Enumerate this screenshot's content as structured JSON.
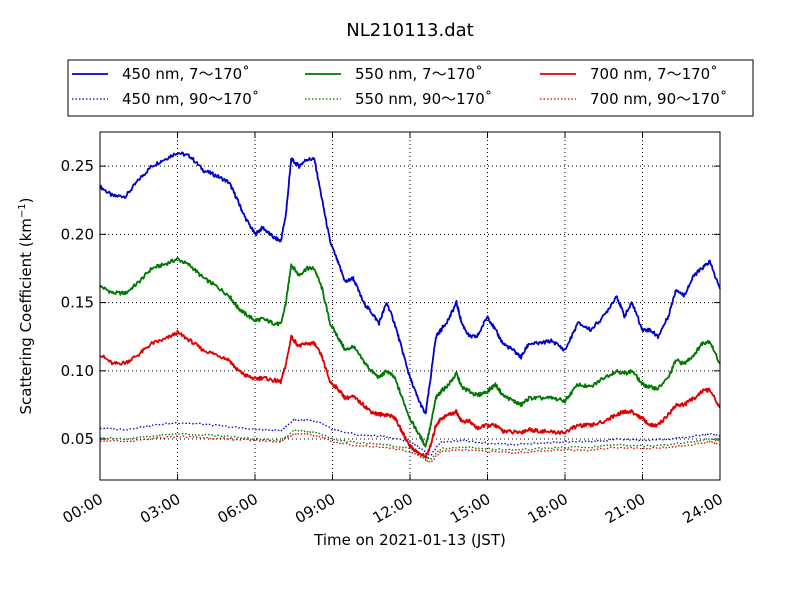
{
  "chart_data": {
    "type": "line",
    "title": "NL210113.dat",
    "xlabel": "Time on 2021-01-13 (JST)",
    "ylabel_main": "Scattering Coefficient (km",
    "ylabel_sup": "−1",
    "ylabel_end": ")",
    "xlim": [
      0,
      24
    ],
    "ylim": [
      0.02,
      0.275
    ],
    "x_ticks": [
      0,
      3,
      6,
      9,
      12,
      15,
      18,
      21,
      24
    ],
    "x_tick_labels": [
      "00:00",
      "03:00",
      "06:00",
      "09:00",
      "12:00",
      "15:00",
      "18:00",
      "21:00",
      "24:00"
    ],
    "y_ticks": [
      0.05,
      0.1,
      0.15,
      0.2,
      0.25
    ],
    "y_tick_labels": [
      "0.05",
      "0.10",
      "0.15",
      "0.20",
      "0.25"
    ],
    "grid": true,
    "legend_position": "top",
    "series": [
      {
        "name": "450 nm, 7～170˚",
        "color": "#0000cc",
        "style": "solid",
        "x": [
          0,
          0.5,
          1,
          1.5,
          2,
          2.5,
          3,
          3.5,
          4,
          4.5,
          5,
          5.3,
          5.6,
          6,
          6.3,
          6.7,
          7,
          7.2,
          7.4,
          7.7,
          8,
          8.3,
          8.6,
          8.9,
          9.2,
          9.5,
          9.8,
          10.2,
          10.5,
          10.8,
          11.1,
          11.4,
          11.7,
          12,
          12.3,
          12.6,
          12.8,
          13,
          13.2,
          13.5,
          13.8,
          14,
          14.3,
          14.6,
          15,
          15.3,
          15.6,
          16,
          16.3,
          16.6,
          17,
          17.5,
          18,
          18.5,
          19,
          19.5,
          20,
          20.3,
          20.6,
          21,
          21.3,
          21.6,
          22,
          22.3,
          22.6,
          23,
          23.3,
          23.6,
          24
        ],
        "y": [
          0.235,
          0.228,
          0.228,
          0.24,
          0.25,
          0.255,
          0.26,
          0.257,
          0.247,
          0.243,
          0.238,
          0.226,
          0.213,
          0.2,
          0.205,
          0.198,
          0.195,
          0.215,
          0.255,
          0.25,
          0.255,
          0.255,
          0.225,
          0.195,
          0.18,
          0.165,
          0.168,
          0.15,
          0.143,
          0.135,
          0.15,
          0.135,
          0.115,
          0.095,
          0.08,
          0.068,
          0.095,
          0.125,
          0.13,
          0.138,
          0.15,
          0.135,
          0.125,
          0.125,
          0.14,
          0.13,
          0.12,
          0.115,
          0.11,
          0.12,
          0.12,
          0.122,
          0.115,
          0.135,
          0.13,
          0.14,
          0.155,
          0.14,
          0.15,
          0.13,
          0.13,
          0.125,
          0.14,
          0.16,
          0.155,
          0.17,
          0.175,
          0.18,
          0.16
        ]
      },
      {
        "name": "550 nm, 7～170˚",
        "color": "#007700",
        "style": "solid",
        "x": [
          0,
          0.5,
          1,
          1.5,
          2,
          2.5,
          3,
          3.5,
          4,
          4.5,
          5,
          5.3,
          5.6,
          6,
          6.3,
          6.7,
          7,
          7.2,
          7.4,
          7.7,
          8,
          8.3,
          8.6,
          8.9,
          9.2,
          9.5,
          9.8,
          10.2,
          10.5,
          10.8,
          11.1,
          11.4,
          11.7,
          12,
          12.3,
          12.6,
          12.8,
          13,
          13.2,
          13.5,
          13.8,
          14,
          14.3,
          14.6,
          15,
          15.3,
          15.6,
          16,
          16.3,
          16.6,
          17,
          17.5,
          18,
          18.5,
          19,
          19.5,
          20,
          20.3,
          20.6,
          21,
          21.3,
          21.6,
          22,
          22.3,
          22.6,
          23,
          23.3,
          23.6,
          24
        ],
        "y": [
          0.162,
          0.157,
          0.157,
          0.165,
          0.175,
          0.178,
          0.182,
          0.177,
          0.168,
          0.162,
          0.155,
          0.147,
          0.142,
          0.137,
          0.138,
          0.135,
          0.134,
          0.15,
          0.178,
          0.17,
          0.175,
          0.175,
          0.16,
          0.135,
          0.125,
          0.115,
          0.118,
          0.107,
          0.1,
          0.095,
          0.1,
          0.095,
          0.08,
          0.065,
          0.055,
          0.045,
          0.06,
          0.08,
          0.085,
          0.09,
          0.098,
          0.088,
          0.085,
          0.082,
          0.085,
          0.09,
          0.082,
          0.078,
          0.075,
          0.08,
          0.08,
          0.08,
          0.078,
          0.09,
          0.088,
          0.095,
          0.1,
          0.098,
          0.1,
          0.09,
          0.088,
          0.087,
          0.095,
          0.108,
          0.105,
          0.112,
          0.12,
          0.122,
          0.105
        ]
      },
      {
        "name": "700 nm, 7～170˚",
        "color": "#dd0000",
        "style": "solid",
        "x": [
          0,
          0.5,
          1,
          1.5,
          2,
          2.5,
          3,
          3.5,
          4,
          4.5,
          5,
          5.3,
          5.6,
          6,
          6.3,
          6.7,
          7,
          7.2,
          7.4,
          7.7,
          8,
          8.3,
          8.6,
          8.9,
          9.2,
          9.5,
          9.8,
          10.2,
          10.5,
          10.8,
          11.1,
          11.4,
          11.7,
          12,
          12.3,
          12.6,
          12.8,
          13,
          13.2,
          13.5,
          13.8,
          14,
          14.3,
          14.6,
          15,
          15.3,
          15.6,
          16,
          16.3,
          16.6,
          17,
          17.5,
          18,
          18.5,
          19,
          19.5,
          20,
          20.3,
          20.6,
          21,
          21.3,
          21.6,
          22,
          22.3,
          22.6,
          23,
          23.3,
          23.6,
          24
        ],
        "y": [
          0.112,
          0.105,
          0.106,
          0.112,
          0.12,
          0.123,
          0.128,
          0.122,
          0.115,
          0.112,
          0.108,
          0.101,
          0.097,
          0.094,
          0.095,
          0.093,
          0.092,
          0.105,
          0.125,
          0.118,
          0.12,
          0.12,
          0.11,
          0.092,
          0.087,
          0.08,
          0.081,
          0.075,
          0.07,
          0.068,
          0.068,
          0.066,
          0.055,
          0.045,
          0.04,
          0.037,
          0.045,
          0.06,
          0.065,
          0.068,
          0.07,
          0.063,
          0.063,
          0.058,
          0.06,
          0.06,
          0.056,
          0.055,
          0.055,
          0.057,
          0.056,
          0.055,
          0.055,
          0.06,
          0.06,
          0.063,
          0.068,
          0.07,
          0.07,
          0.065,
          0.06,
          0.06,
          0.068,
          0.075,
          0.075,
          0.08,
          0.085,
          0.086,
          0.073
        ]
      },
      {
        "name": "450 nm, 90～170˚",
        "color": "#0000cc",
        "style": "dotted",
        "x": [
          0,
          1,
          2,
          3,
          4,
          5,
          6,
          7,
          7.5,
          8,
          8.5,
          9,
          10,
          11,
          12,
          12.5,
          12.8,
          13.2,
          14,
          15,
          16,
          17,
          18,
          19,
          20,
          21,
          22,
          23,
          23.6,
          24
        ],
        "y": [
          0.058,
          0.057,
          0.06,
          0.062,
          0.061,
          0.059,
          0.057,
          0.056,
          0.064,
          0.064,
          0.062,
          0.057,
          0.053,
          0.052,
          0.048,
          0.042,
          0.038,
          0.048,
          0.049,
          0.047,
          0.046,
          0.047,
          0.048,
          0.048,
          0.05,
          0.049,
          0.05,
          0.052,
          0.054,
          0.052
        ]
      },
      {
        "name": "550 nm, 90～170˚",
        "color": "#007700",
        "style": "dotted",
        "x": [
          0,
          1,
          2,
          3,
          4,
          5,
          6,
          7,
          7.5,
          8,
          8.5,
          9,
          10,
          11,
          12,
          12.5,
          12.8,
          13.2,
          14,
          15,
          16,
          17,
          18,
          19,
          20,
          21,
          22,
          23,
          23.6,
          24
        ],
        "y": [
          0.051,
          0.05,
          0.052,
          0.054,
          0.053,
          0.052,
          0.05,
          0.049,
          0.056,
          0.056,
          0.054,
          0.05,
          0.047,
          0.046,
          0.043,
          0.038,
          0.035,
          0.043,
          0.044,
          0.043,
          0.042,
          0.043,
          0.044,
          0.044,
          0.046,
          0.045,
          0.046,
          0.048,
          0.05,
          0.048
        ]
      },
      {
        "name": "700 nm, 90～170˚",
        "color": "#dd0000",
        "style": "dotted",
        "x": [
          0,
          1,
          2,
          3,
          4,
          5,
          6,
          7,
          7.5,
          8,
          8.5,
          9,
          10,
          11,
          12,
          12.5,
          12.8,
          13.2,
          14,
          15,
          16,
          17,
          18,
          19,
          20,
          21,
          22,
          23,
          23.6,
          24
        ],
        "y": [
          0.049,
          0.048,
          0.05,
          0.052,
          0.051,
          0.05,
          0.049,
          0.048,
          0.054,
          0.054,
          0.052,
          0.048,
          0.045,
          0.044,
          0.041,
          0.036,
          0.033,
          0.041,
          0.042,
          0.041,
          0.04,
          0.041,
          0.042,
          0.042,
          0.044,
          0.043,
          0.044,
          0.046,
          0.048,
          0.046
        ]
      }
    ]
  }
}
